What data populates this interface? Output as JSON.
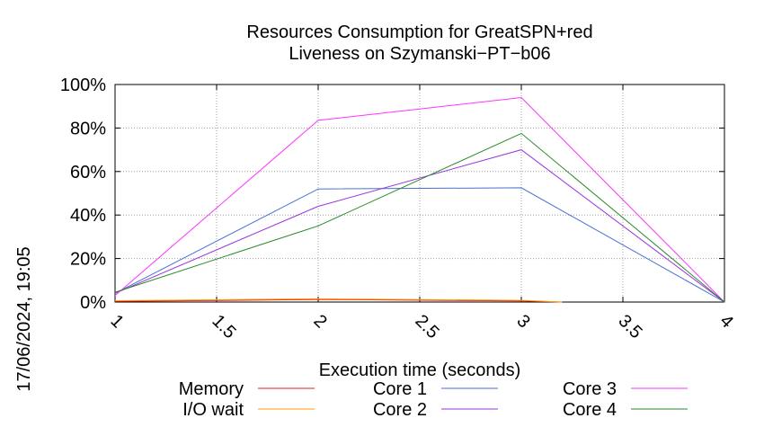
{
  "side_label": "17/06/2024, 19:05",
  "chart_data": {
    "type": "line",
    "title": [
      "Resources Consumption for GreatSPN+red",
      "Liveness on Szymanski−PT−b06"
    ],
    "xlabel": "Execution time (seconds)",
    "ylabel": "",
    "xlim": [
      1,
      4
    ],
    "ylim": [
      0,
      100
    ],
    "x_ticks": [
      "1",
      "1.5",
      "2",
      "2.5",
      "3",
      "3.5",
      "4"
    ],
    "y_ticks": [
      "0%",
      "20%",
      "40%",
      "60%",
      "80%",
      "100%"
    ],
    "grid": true,
    "legend_position": "bottom",
    "series": [
      {
        "name": "Memory",
        "color": "#e41a1c",
        "x": [
          1,
          2,
          3,
          3.2
        ],
        "y": [
          0.3,
          1.2,
          0.5,
          0
        ]
      },
      {
        "name": "I/O wait",
        "color": "#ff9900",
        "x": [
          1,
          2,
          3,
          3.2
        ],
        "y": [
          0.6,
          1.5,
          0.8,
          0
        ]
      },
      {
        "name": "Core 1",
        "color": "#4a6fd4",
        "x": [
          1,
          2,
          3,
          4
        ],
        "y": [
          4,
          52,
          52.5,
          0
        ]
      },
      {
        "name": "Core 2",
        "color": "#9933dd",
        "x": [
          1,
          2,
          3,
          4
        ],
        "y": [
          4,
          44,
          70,
          0
        ]
      },
      {
        "name": "Core 3",
        "color": "#ff33ff",
        "x": [
          1,
          2,
          3,
          4
        ],
        "y": [
          3,
          83.5,
          94,
          0
        ]
      },
      {
        "name": "Core 4",
        "color": "#2a8a2a",
        "x": [
          1,
          2,
          3,
          4
        ],
        "y": [
          4.5,
          35,
          77.5,
          0
        ]
      }
    ]
  }
}
